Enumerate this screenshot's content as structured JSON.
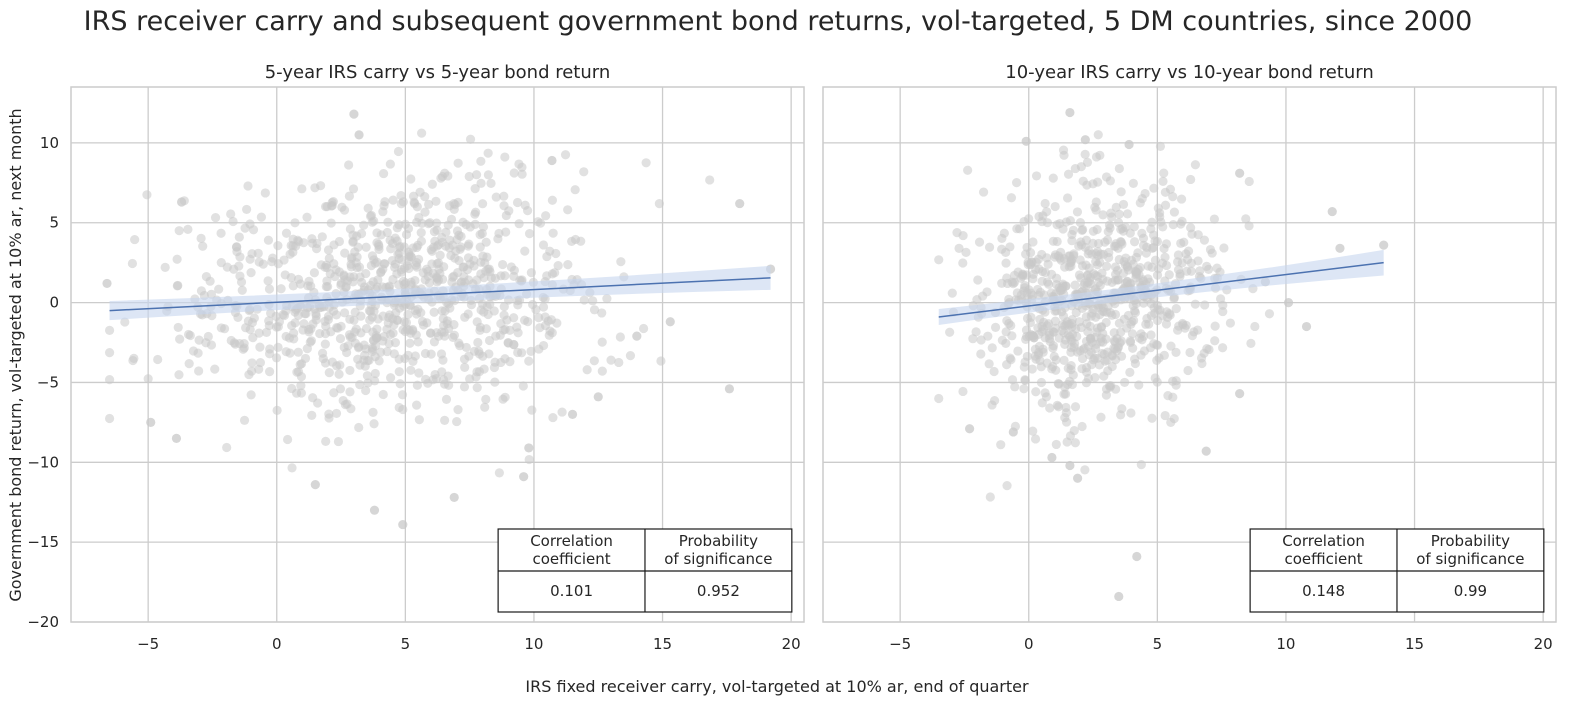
{
  "figure": {
    "title": "IRS receiver carry and subsequent government bond returns, vol-targeted, 5 DM countries, since 2000",
    "xlabel": "IRS fixed receiver carry, vol-targeted at 10% ar, end of quarter",
    "ylabel": "Government bond return, vol-targeted at 10% ar, next month"
  },
  "colors": {
    "scatter": "#c8c8c8",
    "regression_line": "#4c72b0",
    "confidence_band": "#c7d6ee",
    "grid": "#cccccc",
    "axes_edge": "#cccccc",
    "text": "#262626"
  },
  "chart_data": [
    {
      "type": "scatter",
      "title": "5-year IRS carry vs 5-year bond return",
      "xlim": [
        -8,
        20.5
      ],
      "ylim": [
        -20,
        13.5
      ],
      "xticks": [
        -5,
        0,
        5,
        10,
        15,
        20
      ],
      "xtick_labels": [
        "−5",
        "0",
        "5",
        "10",
        "15",
        "20"
      ],
      "yticks": [
        -20,
        -15,
        -10,
        -5,
        0,
        5,
        10
      ],
      "ytick_labels": [
        "−20",
        "−15",
        "−10",
        "−5",
        "0",
        "5",
        "10"
      ],
      "grid": true,
      "regression": {
        "x": [
          -6.5,
          19.2
        ],
        "y": [
          -0.5,
          1.55
        ],
        "ci_halfwidth_ends": [
          0.6,
          0.75
        ]
      },
      "cloud": {
        "n": 950,
        "seed": 17,
        "x_mean": 4.2,
        "x_sd": 4.0,
        "x_min": -6.5,
        "x_max": 19.2,
        "y_sd": 3.6
      },
      "outliers": [
        [
          3,
          11.8
        ],
        [
          3.2,
          10.5
        ],
        [
          10.7,
          8.9
        ],
        [
          18,
          6.2
        ],
        [
          -3.7,
          6.3
        ],
        [
          3.8,
          -13
        ],
        [
          4.9,
          -13.9
        ],
        [
          6.9,
          -12.2
        ],
        [
          1.5,
          -11.4
        ],
        [
          9.6,
          -10.9
        ],
        [
          15.3,
          -1.2
        ],
        [
          19.2,
          2.1
        ],
        [
          -6.6,
          1.2
        ],
        [
          17.6,
          -5.4
        ],
        [
          11.5,
          -7
        ],
        [
          12.5,
          -5.9
        ],
        [
          9.8,
          -9.1
        ],
        [
          14,
          -2.1
        ],
        [
          -4.9,
          -7.5
        ],
        [
          -3.9,
          -8.5
        ]
      ],
      "stats_table": {
        "headers": [
          "Correlation\ncoefficient",
          "Probability\nof significance"
        ],
        "values": [
          "0.101",
          "0.952"
        ]
      }
    },
    {
      "type": "scatter",
      "title": "10-year IRS carry vs 10-year bond return",
      "xlim": [
        -8,
        20.5
      ],
      "ylim": [
        -20,
        13.5
      ],
      "xticks": [
        -5,
        0,
        5,
        10,
        15,
        20
      ],
      "xtick_labels": [
        "−5",
        "0",
        "5",
        "10",
        "15",
        "20"
      ],
      "yticks": [
        -20,
        -15,
        -10,
        -5,
        0,
        5,
        10
      ],
      "ytick_labels": [
        "−20",
        "−15",
        "−10",
        "−5",
        "0",
        "5",
        "10"
      ],
      "grid": true,
      "regression": {
        "x": [
          -3.5,
          13.8
        ],
        "y": [
          -0.9,
          2.5
        ],
        "ci_halfwidth_ends": [
          0.5,
          0.8
        ]
      },
      "cloud": {
        "n": 800,
        "seed": 29,
        "x_mean": 2.6,
        "x_sd": 2.3,
        "x_min": -3.5,
        "x_max": 9.5,
        "y_sd": 3.5
      },
      "outliers": [
        [
          1.6,
          11.9
        ],
        [
          -0.1,
          10.1
        ],
        [
          3.9,
          9.9
        ],
        [
          2.2,
          10.2
        ],
        [
          13.8,
          3.6
        ],
        [
          11.8,
          5.7
        ],
        [
          12.1,
          3.4
        ],
        [
          10.8,
          -1.5
        ],
        [
          10.1,
          0
        ],
        [
          4.2,
          -15.9
        ],
        [
          3.5,
          -18.4
        ],
        [
          1.6,
          -10.2
        ],
        [
          1.9,
          -11
        ],
        [
          0.9,
          -9.7
        ],
        [
          6.9,
          -9.3
        ],
        [
          -2.3,
          -7.9
        ],
        [
          8.2,
          -5.7
        ],
        [
          8.2,
          8.1
        ],
        [
          -0.6,
          -8.1
        ],
        [
          9.2,
          1.3
        ]
      ],
      "stats_table": {
        "headers": [
          "Correlation\ncoefficient",
          "Probability\nof significance"
        ],
        "values": [
          "0.148",
          "0.99"
        ]
      }
    }
  ]
}
